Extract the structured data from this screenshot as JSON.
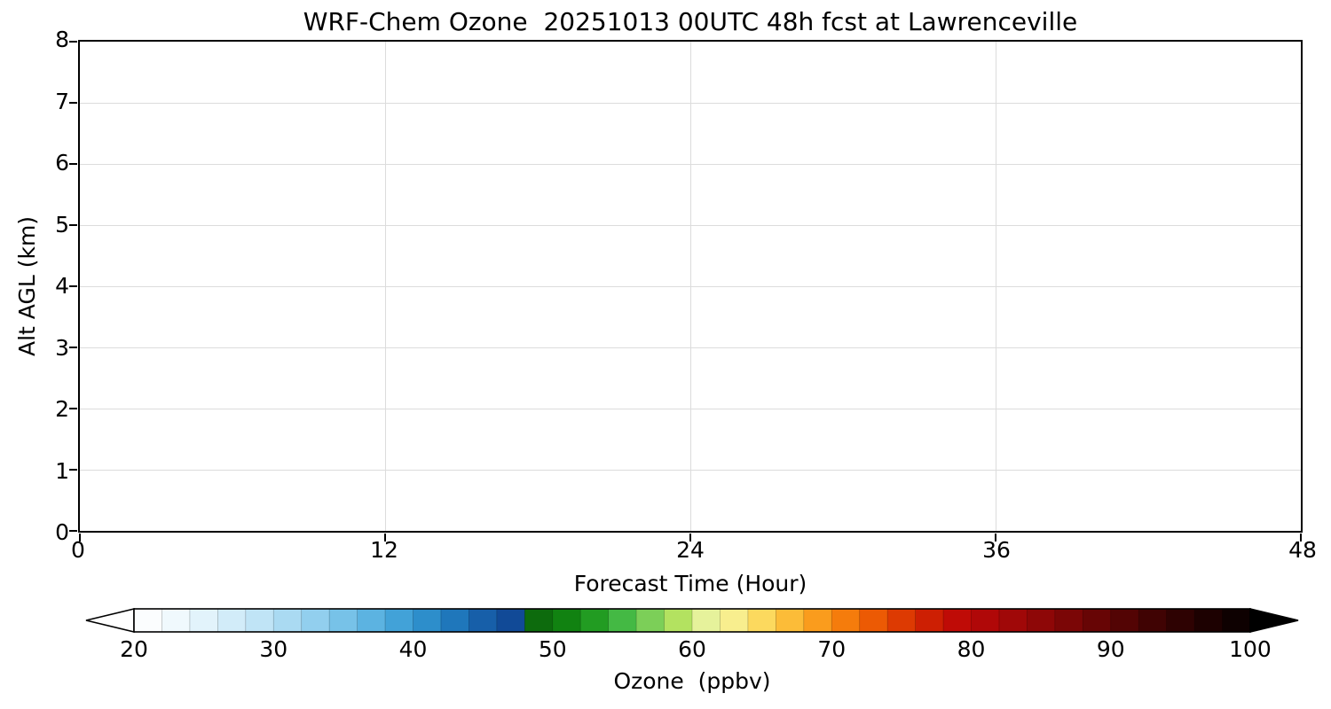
{
  "chart_data": {
    "type": "heatmap",
    "title": "WRF-Chem Ozone  20251013 00UTC 48h fcst at Lawrenceville",
    "xlabel": "Forecast Time (Hour)",
    "ylabel": "Alt AGL (km)",
    "xlim": [
      0,
      48
    ],
    "ylim": [
      0,
      8
    ],
    "x_ticks": [
      0,
      12,
      24,
      36,
      48
    ],
    "y_ticks": [
      0,
      1,
      2,
      3,
      4,
      5,
      6,
      7,
      8
    ],
    "grid": true,
    "values": [],
    "colorbar": {
      "label": "Ozone  (ppbv)",
      "ticks": [
        20,
        30,
        40,
        50,
        60,
        70,
        80,
        90,
        100
      ],
      "range": [
        20,
        100
      ],
      "segment_step_ppbv": 2,
      "extend_under_color": "#ffffff",
      "extend_over_color": "#000000",
      "segments": [
        "#fbfdfe",
        "#f0f9fd",
        "#e2f3fb",
        "#d2ecf9",
        "#c0e4f6",
        "#aadaf2",
        "#92cfee",
        "#77c2e8",
        "#5cb3e1",
        "#42a2d8",
        "#2d8ecb",
        "#1f77bb",
        "#175fa9",
        "#114a97",
        "#0d6b0d",
        "#118211",
        "#229c22",
        "#44b944",
        "#7ccf58",
        "#b3e260",
        "#e6f29b",
        "#f8ee8e",
        "#fcd95e",
        "#fcbc38",
        "#fa9c1d",
        "#f57c0c",
        "#ec5a04",
        "#dd3a02",
        "#cd1f03",
        "#bf0b06",
        "#b00808",
        "#a00808",
        "#8e0707",
        "#7b0606",
        "#670505",
        "#530404",
        "#400303",
        "#2e0202",
        "#1d0101",
        "#0e0101"
      ]
    }
  }
}
